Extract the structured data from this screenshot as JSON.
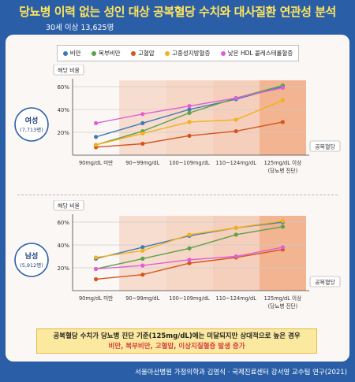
{
  "title": "당뇨병 이력 없는 성인 대상 공복혈당 수치와 대사질환 연관성 분석",
  "subtitle": "30세 이상 13,625명",
  "legend": [
    {
      "label": "비만",
      "color": "#3d7ab8"
    },
    {
      "label": "복부비만",
      "color": "#5aa24a"
    },
    {
      "label": "고혈압",
      "color": "#d4561c"
    },
    {
      "label": "고중성지방혈증",
      "color": "#f2b21b"
    },
    {
      "label": "낮은 HDL 콜레스테롤혈증",
      "color": "#e05fd8"
    }
  ],
  "callout": {
    "line1": "공복혈당 수치가 당뇨병 진단 기준(125mg/dL)에는 미달되지만 상대적으로 높은 경우",
    "line2": "비만, 복부비만, 고혈압, 이상지질혈증 발생 증가"
  },
  "credit": "서울아산병원 가정의학과 김영식 · 국제진료센터 강서영 교수팀 연구(2021)",
  "chart_data": [
    {
      "type": "line",
      "group_label": "여성",
      "group_count": "(7,713명)",
      "ylabel": "해당 비율",
      "xlabel": "공복혈당",
      "ylim": [
        0,
        60
      ],
      "yticks": [
        "20%",
        "40%",
        "60%"
      ],
      "categories": [
        "90mg/dL 미만",
        "90~99mg/dL",
        "100~109mg/dL",
        "110~124mg/dL",
        "125mg/dL 이상"
      ],
      "category_note": "(당뇨병 진단)",
      "series": [
        {
          "name": "비만",
          "color": "#3d7ab8",
          "values": [
            16,
            28,
            40,
            49,
            60
          ]
        },
        {
          "name": "복부비만",
          "color": "#5aa24a",
          "values": [
            9,
            21,
            37,
            50,
            61
          ]
        },
        {
          "name": "고혈압",
          "color": "#d4561c",
          "values": [
            7,
            10,
            17,
            21,
            29
          ]
        },
        {
          "name": "고중성지방혈증",
          "color": "#f2b21b",
          "values": [
            9,
            19,
            29,
            31,
            48
          ]
        },
        {
          "name": "낮은 HDL 콜레스테롤혈증",
          "color": "#e05fd8",
          "values": [
            28,
            36,
            43,
            50,
            59
          ]
        }
      ]
    },
    {
      "type": "line",
      "group_label": "남성",
      "group_count": "(5,912명)",
      "ylabel": "해당 비율",
      "xlabel": "공복혈당",
      "ylim": [
        0,
        60
      ],
      "yticks": [
        "20%",
        "40%",
        "60%"
      ],
      "categories": [
        "90mg/dL 미만",
        "90~99mg/dL",
        "100~109mg/dL",
        "110~124mg/dL",
        "125mg/dL 이상"
      ],
      "category_note": "(당뇨병 진단)",
      "series": [
        {
          "name": "비만",
          "color": "#3d7ab8",
          "values": [
            28,
            38,
            48,
            55,
            60
          ]
        },
        {
          "name": "복부비만",
          "color": "#5aa24a",
          "values": [
            19,
            28,
            37,
            49,
            56
          ]
        },
        {
          "name": "고혈압",
          "color": "#d4561c",
          "values": [
            10,
            14,
            24,
            29,
            36
          ]
        },
        {
          "name": "고중성지방혈증",
          "color": "#f2b21b",
          "values": [
            29,
            35,
            49,
            55,
            61
          ]
        },
        {
          "name": "낮은 HDL 콜레스테롤혈증",
          "color": "#e05fd8",
          "values": [
            19,
            22,
            27,
            30,
            38
          ]
        }
      ]
    }
  ]
}
